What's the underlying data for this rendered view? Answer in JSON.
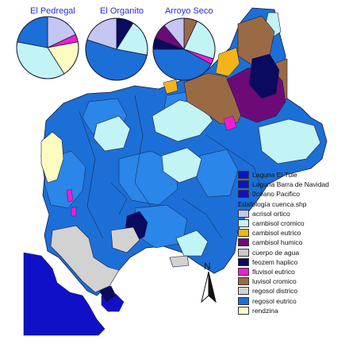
{
  "pies": [
    {
      "title": "El Pedregal",
      "slices": [
        {
          "label": "acrisol ortico",
          "fraction": 0.18,
          "color": "#c6c6f2"
        },
        {
          "label": "fluvisol eutrico",
          "fraction": 0.04,
          "color": "#f01ed2"
        },
        {
          "label": "rendzina",
          "fraction": 0.19,
          "color": "#fcfcc0"
        },
        {
          "label": "cambisol cromico",
          "fraction": 0.37,
          "color": "#c2f4f6"
        },
        {
          "label": "regosol eutrico",
          "fraction": 0.22,
          "color": "#1c6fd6"
        }
      ]
    },
    {
      "title": "El Organito",
      "slices": [
        {
          "label": "feozem haplico",
          "fraction": 0.09,
          "color": "#0a0a5e"
        },
        {
          "label": "cambisol cromico",
          "fraction": 0.19,
          "color": "#c2f4f6"
        },
        {
          "label": "regosol eutrico",
          "fraction": 0.52,
          "color": "#1c6fd6"
        },
        {
          "label": "acrisol ortico",
          "fraction": 0.2,
          "color": "#c6c6f2"
        }
      ]
    },
    {
      "title": "Arroyo Seco",
      "slices": [
        {
          "label": "luvisol cromico",
          "fraction": 0.07,
          "color": "#9a6a45"
        },
        {
          "label": "cambisol cromico",
          "fraction": 0.23,
          "color": "#c2f4f6"
        },
        {
          "label": "fluvisol eutrico",
          "fraction": 0.03,
          "color": "#f01ed2"
        },
        {
          "label": "regosol eutrico",
          "fraction": 0.42,
          "color": "#1c6fd6"
        },
        {
          "label": "feozem haplico",
          "fraction": 0.06,
          "color": "#0a0a5e"
        },
        {
          "label": "cambisol humico",
          "fraction": 0.08,
          "color": "#6e0a78"
        },
        {
          "label": "acrisol ortico",
          "fraction": 0.11,
          "color": "#c6c6f2"
        }
      ]
    }
  ],
  "legend": {
    "layers": [
      {
        "label": "Laguna El Tule",
        "color": "#1010c8"
      },
      {
        "label": "Laguna Barra de Navidad",
        "color": "#1010c8"
      },
      {
        "label": "0céano Pacifico",
        "color": "#1010c8"
      }
    ],
    "heading": "Edafología cuenca.shp",
    "classes": [
      {
        "label": "acrisol ortico",
        "color": "#c6c6f2"
      },
      {
        "label": "cambisol cromico",
        "color": "#c2f4f6"
      },
      {
        "label": "cambisol eutrico",
        "color": "#f2b418"
      },
      {
        "label": "cambisol humico",
        "color": "#6e0a78"
      },
      {
        "label": "cuerpo de agua",
        "color": "#c8c8c8"
      },
      {
        "label": "feozem haplico",
        "color": "#0a0a5e"
      },
      {
        "label": "fluvisol eutrico",
        "color": "#f01ed2"
      },
      {
        "label": "luvisol cromico",
        "color": "#9a6a45"
      },
      {
        "label": "regosol districo",
        "color": "#d2d2d2"
      },
      {
        "label": "regosol eutrico",
        "color": "#1c6fd6"
      },
      {
        "label": "rendzina",
        "color": "#fcfcc0"
      }
    ]
  },
  "north_label": "N",
  "colors": {
    "ocean": "#1010c8",
    "regosol_eutrico": "#1c6fd6",
    "regosol_eutrico_light": "#2a86e8",
    "cambisol_cromico": "#c2f4f6",
    "cambisol_eutrico": "#f2b418",
    "cambisol_humico": "#6e0a78",
    "luvisol_cromico": "#9a6a45",
    "feozem_haplico": "#0a0a5e",
    "fluvisol_eutrico": "#f01ed2",
    "regosol_districo": "#d2d2d2",
    "rendzina": "#fcfcc0",
    "acrisol_ortico": "#c6c6f2",
    "boundary": "#1a1a3a",
    "title_text": "#2a2adc"
  }
}
